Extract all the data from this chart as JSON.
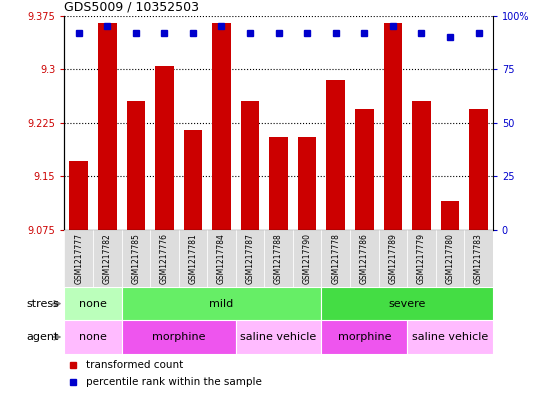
{
  "title": "GDS5009 / 10352503",
  "samples": [
    "GSM1217777",
    "GSM1217782",
    "GSM1217785",
    "GSM1217776",
    "GSM1217781",
    "GSM1217784",
    "GSM1217787",
    "GSM1217788",
    "GSM1217790",
    "GSM1217778",
    "GSM1217786",
    "GSM1217789",
    "GSM1217779",
    "GSM1217780",
    "GSM1217783"
  ],
  "bar_values": [
    9.172,
    9.365,
    9.255,
    9.305,
    9.215,
    9.365,
    9.255,
    9.205,
    9.205,
    9.285,
    9.245,
    9.365,
    9.255,
    9.115,
    9.245
  ],
  "dot_values": [
    92,
    95,
    92,
    92,
    92,
    95,
    92,
    92,
    92,
    92,
    92,
    95,
    92,
    90,
    92
  ],
  "bar_color": "#cc0000",
  "dot_color": "#0000cc",
  "ylim_left": [
    9.075,
    9.375
  ],
  "ylim_right": [
    0,
    100
  ],
  "yticks_left": [
    9.075,
    9.15,
    9.225,
    9.3,
    9.375
  ],
  "yticks_right": [
    0,
    25,
    50,
    75,
    100
  ],
  "ytick_labels_right": [
    "0",
    "25",
    "50",
    "75",
    "100%"
  ],
  "stress_groups": [
    {
      "label": "none",
      "start": 0,
      "end": 2,
      "color": "#bbffbb"
    },
    {
      "label": "mild",
      "start": 2,
      "end": 9,
      "color": "#66ee66"
    },
    {
      "label": "severe",
      "start": 9,
      "end": 15,
      "color": "#44dd44"
    }
  ],
  "agent_groups": [
    {
      "label": "none",
      "start": 0,
      "end": 2,
      "color": "#ffbbff"
    },
    {
      "label": "morphine",
      "start": 2,
      "end": 6,
      "color": "#ee55ee"
    },
    {
      "label": "saline vehicle",
      "start": 6,
      "end": 9,
      "color": "#ffbbff"
    },
    {
      "label": "morphine",
      "start": 9,
      "end": 12,
      "color": "#ee55ee"
    },
    {
      "label": "saline vehicle",
      "start": 12,
      "end": 15,
      "color": "#ffbbff"
    }
  ],
  "background_color": "#ffffff"
}
